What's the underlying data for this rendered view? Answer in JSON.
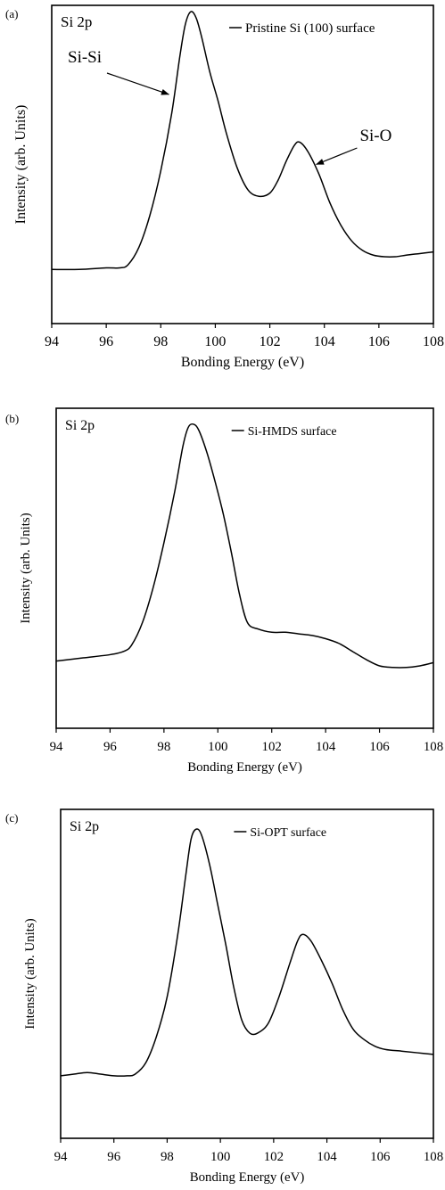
{
  "chart_data": [
    {
      "panel_label": "(a)",
      "type": "line",
      "corner_label": "Si 2p",
      "legend": "Pristine Si (100) surface",
      "legend_position": "top-right",
      "xlabel": "Bonding Energy (eV)",
      "ylabel": "Intensity (arb. Units)",
      "xlim": [
        94,
        108
      ],
      "ylim": [
        0,
        100
      ],
      "xticks": [
        94,
        96,
        98,
        100,
        102,
        104,
        106,
        108
      ],
      "y_tick_labels": false,
      "grid": false,
      "series": [
        {
          "x": [
            94,
            95,
            96,
            96.5,
            96.8,
            97.2,
            97.6,
            98.0,
            98.4,
            98.7,
            98.9,
            99.1,
            99.3,
            99.5,
            99.8,
            100.1,
            100.4,
            100.8,
            101.2,
            101.6,
            102.0,
            102.3,
            102.6,
            102.9,
            103.1,
            103.4,
            103.8,
            104.2,
            104.6,
            105.0,
            105.4,
            105.8,
            106.2,
            106.6,
            107.0,
            107.5,
            108
          ],
          "y": [
            17,
            17,
            17.5,
            17.5,
            18.5,
            24,
            34,
            48,
            66,
            84,
            94,
            98,
            96,
            90,
            79,
            70,
            60,
            49,
            42,
            40,
            41,
            45,
            51,
            56,
            57,
            54,
            47,
            38,
            31,
            26,
            23,
            21.5,
            21,
            21,
            21.5,
            22,
            22.5
          ]
        }
      ],
      "annotations": [
        {
          "text": "Si-Si",
          "points_to_x": 98.3,
          "points_to_y": 72
        },
        {
          "text": "Si-O",
          "points_to_x": 103.7,
          "points_to_y": 50
        }
      ]
    },
    {
      "panel_label": "(b)",
      "type": "line",
      "corner_label": "Si 2p",
      "legend": "Si-HMDS surface",
      "legend_position": "top-right",
      "xlabel": "Bonding Energy (eV)",
      "ylabel": "Intensity (arb. Units)",
      "xlim": [
        94,
        108
      ],
      "ylim": [
        0,
        100
      ],
      "xticks": [
        94,
        96,
        98,
        100,
        102,
        104,
        106,
        108
      ],
      "y_tick_labels": false,
      "grid": false,
      "series": [
        {
          "x": [
            94,
            95,
            96,
            96.5,
            96.8,
            97.2,
            97.6,
            98.0,
            98.4,
            98.7,
            98.9,
            99.1,
            99.3,
            99.6,
            99.9,
            100.2,
            100.5,
            100.8,
            101.1,
            101.5,
            102.0,
            102.5,
            103.0,
            103.5,
            104.0,
            104.5,
            105.0,
            105.5,
            106.0,
            106.5,
            107.0,
            107.5,
            108
          ],
          "y": [
            21,
            22,
            23,
            24,
            26,
            33,
            44,
            58,
            74,
            88,
            94,
            95,
            93,
            86,
            77,
            67,
            55,
            42,
            33,
            31,
            30,
            30,
            29.5,
            29,
            28,
            26.5,
            24,
            21.5,
            19.5,
            19,
            19,
            19.5,
            20.5
          ]
        }
      ]
    },
    {
      "panel_label": "(c)",
      "type": "line",
      "corner_label": "Si 2p",
      "legend": "Si-OPT surface",
      "legend_position": "top-right",
      "xlabel": "Bonding Energy (eV)",
      "ylabel": "Intensity (arb. Units)",
      "xlim": [
        94,
        108
      ],
      "ylim": [
        0,
        100
      ],
      "xticks": [
        94,
        96,
        98,
        100,
        102,
        104,
        106,
        108
      ],
      "y_tick_labels": false,
      "grid": false,
      "series": [
        {
          "x": [
            94,
            94.5,
            95,
            95.5,
            96,
            96.5,
            96.8,
            97.2,
            97.6,
            98.0,
            98.4,
            98.7,
            98.9,
            99.1,
            99.3,
            99.6,
            99.9,
            100.2,
            100.5,
            100.8,
            101.1,
            101.4,
            101.8,
            102.2,
            102.6,
            102.9,
            103.1,
            103.4,
            103.8,
            104.2,
            104.6,
            105.0,
            105.4,
            105.8,
            106.2,
            106.8,
            107.4,
            108
          ],
          "y": [
            19,
            19.5,
            20,
            19.5,
            19,
            19,
            19.5,
            23,
            31,
            43,
            62,
            80,
            91,
            94,
            92,
            83,
            71,
            59,
            46,
            36,
            32,
            32,
            35,
            43,
            53,
            60,
            62,
            60,
            54,
            47,
            39,
            33,
            30,
            28,
            27,
            26.5,
            26,
            25.5
          ]
        }
      ]
    }
  ]
}
